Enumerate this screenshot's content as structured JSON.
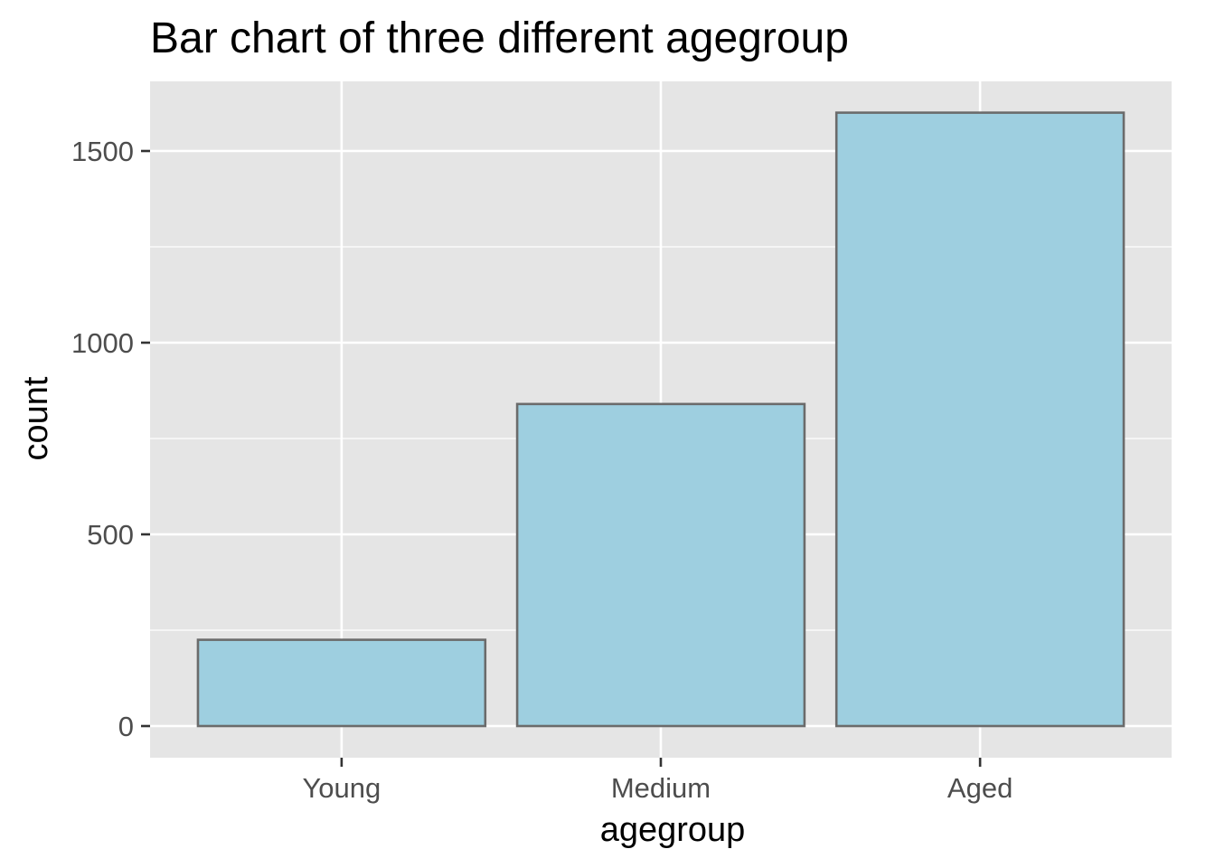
{
  "chart_data": {
    "type": "bar",
    "title": "Bar chart of three different agegroup",
    "xlabel": "agegroup",
    "ylabel": "count",
    "categories": [
      "Young",
      "Medium",
      "Aged"
    ],
    "values": [
      225,
      840,
      1600
    ],
    "ylim": [
      0,
      1680
    ],
    "yticks": [
      0,
      500,
      1000,
      1500
    ],
    "ytick_labels": [
      "0",
      "500",
      "1000",
      "1500"
    ],
    "grid": true,
    "legend": "none",
    "colors": {
      "bar_fill": "#9ecfe0",
      "bar_stroke": "#6b6b6b",
      "panel_background": "#e5e5e5",
      "grid": "#ffffff",
      "tick_mark": "#333333",
      "tick_text": "#4d4d4d"
    }
  }
}
